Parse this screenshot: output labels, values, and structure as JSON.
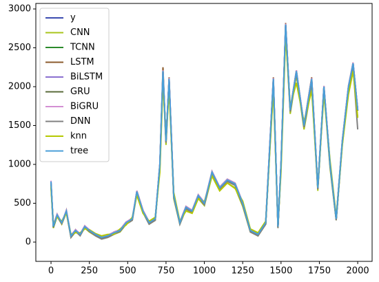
{
  "chart_data": {
    "type": "line",
    "x": [
      0,
      15,
      40,
      70,
      100,
      130,
      160,
      190,
      220,
      250,
      290,
      330,
      370,
      410,
      450,
      490,
      530,
      560,
      600,
      640,
      680,
      710,
      730,
      750,
      770,
      800,
      840,
      880,
      920,
      960,
      1000,
      1050,
      1100,
      1150,
      1200,
      1250,
      1300,
      1350,
      1400,
      1450,
      1480,
      1500,
      1530,
      1560,
      1600,
      1650,
      1700,
      1740,
      1780,
      1820,
      1860,
      1900,
      1940,
      1970,
      2000
    ],
    "xlim": [
      -99,
      2094
    ],
    "xticks": [
      0,
      250,
      500,
      750,
      1000,
      1250,
      1500,
      1750,
      2000
    ],
    "ylim": [
      -248,
      3071
    ],
    "yticks": [
      0,
      500,
      1000,
      1500,
      2000,
      2500,
      3000
    ],
    "legend": "upper left",
    "series": [
      {
        "name": "y",
        "color": "#3b4bb0",
        "values": [
          780,
          200,
          350,
          250,
          400,
          80,
          150,
          100,
          200,
          150,
          100,
          60,
          80,
          120,
          150,
          250,
          300,
          650,
          400,
          250,
          300,
          1000,
          2200,
          1300,
          2100,
          600,
          250,
          450,
          400,
          600,
          500,
          900,
          700,
          800,
          750,
          500,
          150,
          100,
          250,
          2100,
          200,
          1000,
          2800,
          1700,
          2200,
          1500,
          2100,
          700,
          2000,
          1000,
          300,
          1300,
          2000,
          2300,
          1700
        ]
      },
      {
        "name": "CNN",
        "color": "#a8c41a",
        "values": [
          700,
          180,
          330,
          230,
          380,
          60,
          130,
          90,
          180,
          130,
          80,
          40,
          60,
          100,
          130,
          230,
          280,
          620,
          380,
          230,
          280,
          950,
          2100,
          1250,
          2000,
          560,
          230,
          420,
          380,
          560,
          470,
          850,
          660,
          760,
          700,
          460,
          130,
          80,
          230,
          2000,
          180,
          950,
          2700,
          1650,
          2150,
          1450,
          2000,
          660,
          1950,
          950,
          280,
          1250,
          1950,
          2250,
          1600
        ]
      },
      {
        "name": "TCNN",
        "color": "#2a8a2a",
        "values": [
          760,
          210,
          340,
          260,
          390,
          90,
          140,
          110,
          190,
          140,
          90,
          70,
          90,
          110,
          140,
          240,
          310,
          640,
          390,
          240,
          310,
          980,
          2180,
          1320,
          2080,
          590,
          240,
          440,
          390,
          590,
          490,
          890,
          690,
          790,
          740,
          490,
          140,
          110,
          240,
          2080,
          210,
          990,
          2780,
          1690,
          2190,
          1490,
          2080,
          690,
          1990,
          990,
          290,
          1290,
          1990,
          2280,
          1690
        ]
      },
      {
        "name": "LSTM",
        "color": "#8b5a2b",
        "values": [
          750,
          220,
          360,
          240,
          410,
          70,
          160,
          100,
          210,
          150,
          100,
          50,
          70,
          130,
          160,
          260,
          290,
          660,
          410,
          260,
          290,
          1010,
          2250,
          1290,
          2120,
          610,
          260,
          460,
          410,
          610,
          510,
          910,
          710,
          810,
          760,
          510,
          160,
          100,
          260,
          2120,
          190,
          1010,
          2820,
          1710,
          2210,
          1510,
          2120,
          710,
          2010,
          1010,
          310,
          1310,
          2010,
          2310,
          1710
        ]
      },
      {
        "name": "BiLSTM",
        "color": "#8a6fd0",
        "values": [
          770,
          200,
          350,
          250,
          400,
          80,
          150,
          100,
          200,
          150,
          100,
          60,
          80,
          120,
          150,
          250,
          300,
          650,
          400,
          250,
          300,
          1000,
          2200,
          1300,
          2100,
          600,
          250,
          450,
          400,
          600,
          500,
          900,
          700,
          800,
          750,
          500,
          150,
          100,
          250,
          2100,
          200,
          1000,
          2800,
          1700,
          2200,
          1500,
          2100,
          700,
          2000,
          1000,
          300,
          1300,
          2000,
          2300,
          1700
        ]
      },
      {
        "name": "GRU",
        "color": "#5a6b3a",
        "values": [
          740,
          190,
          340,
          260,
          390,
          70,
          140,
          90,
          190,
          140,
          90,
          50,
          70,
          110,
          140,
          240,
          290,
          640,
          390,
          240,
          290,
          990,
          2190,
          1290,
          2090,
          590,
          240,
          440,
          390,
          590,
          490,
          890,
          690,
          790,
          740,
          490,
          140,
          90,
          240,
          2090,
          190,
          990,
          2790,
          1690,
          2190,
          1490,
          2090,
          690,
          1990,
          990,
          290,
          1290,
          1990,
          2290,
          1690
        ]
      },
      {
        "name": "BiGRU",
        "color": "#d38fd3",
        "values": [
          790,
          210,
          360,
          250,
          410,
          90,
          160,
          110,
          210,
          160,
          110,
          70,
          90,
          130,
          160,
          260,
          310,
          660,
          410,
          260,
          310,
          1010,
          2210,
          1310,
          2110,
          610,
          260,
          460,
          410,
          610,
          510,
          910,
          710,
          810,
          760,
          510,
          160,
          110,
          260,
          2110,
          210,
          1010,
          2810,
          1710,
          2210,
          1510,
          2110,
          710,
          2010,
          1010,
          310,
          1310,
          2010,
          2310,
          1710
        ]
      },
      {
        "name": "DNN",
        "color": "#808080",
        "values": [
          760,
          220,
          330,
          240,
          380,
          60,
          140,
          80,
          190,
          140,
          80,
          40,
          60,
          100,
          140,
          230,
          280,
          630,
          380,
          230,
          280,
          980,
          2150,
          1280,
          2050,
          580,
          230,
          430,
          380,
          580,
          480,
          880,
          680,
          780,
          730,
          480,
          130,
          80,
          230,
          2050,
          180,
          980,
          2750,
          1680,
          2180,
          1480,
          2050,
          680,
          1980,
          980,
          280,
          1280,
          1980,
          2250,
          1450
        ]
      },
      {
        "name": "knn",
        "color": "#b5c800",
        "values": [
          720,
          230,
          320,
          270,
          370,
          100,
          120,
          120,
          170,
          160,
          110,
          80,
          100,
          100,
          170,
          220,
          320,
          600,
          370,
          270,
          320,
          900,
          2050,
          1350,
          1950,
          640,
          270,
          400,
          370,
          560,
          520,
          850,
          660,
          760,
          690,
          530,
          170,
          120,
          270,
          1950,
          230,
          900,
          2650,
          1750,
          2050,
          1550,
          1950,
          730,
          1900,
          1050,
          330,
          1250,
          1900,
          2200,
          1600
        ]
      },
      {
        "name": "tree",
        "color": "#4a9fd8",
        "values": [
          780,
          200,
          350,
          250,
          400,
          80,
          150,
          100,
          200,
          150,
          100,
          60,
          80,
          120,
          150,
          250,
          300,
          650,
          400,
          250,
          300,
          1000,
          2200,
          1300,
          2100,
          600,
          250,
          450,
          400,
          600,
          500,
          900,
          700,
          800,
          750,
          500,
          150,
          100,
          250,
          2100,
          200,
          1000,
          2800,
          1700,
          2200,
          1500,
          2100,
          700,
          2000,
          1000,
          300,
          1300,
          2000,
          2300,
          1700
        ]
      }
    ]
  }
}
